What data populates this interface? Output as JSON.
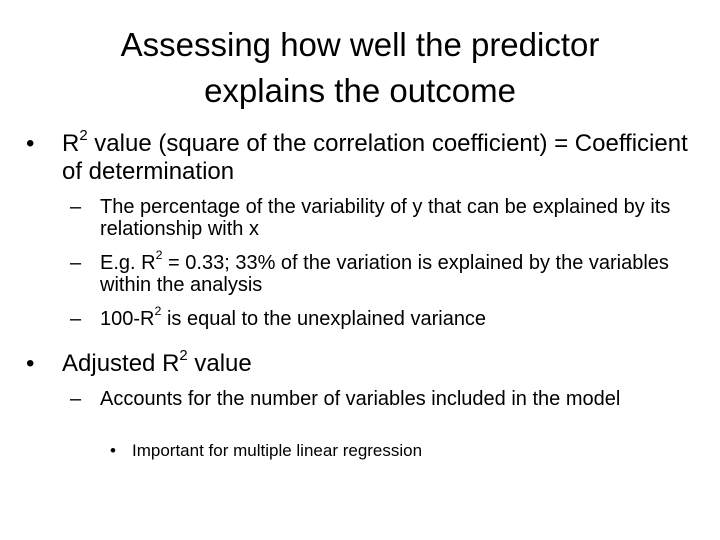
{
  "slide": {
    "title_line1": "Assessing how well the predictor",
    "title_line2": "explains the outcome",
    "markers": {
      "level1": "•",
      "level2": "–",
      "level3": "•"
    },
    "b1": {
      "pre": "R",
      "sup": "2",
      "post": " value (square of the correlation coefficient) = Coefficient of determination"
    },
    "b1_1": {
      "text": "The percentage of the variability of y that can be explained by its relationship with x"
    },
    "b1_2": {
      "pre": "E.g. R",
      "sup": "2",
      "post": " = 0.33; 33% of the variation is explained by the variables within the analysis"
    },
    "b1_3": {
      "pre": "100-R",
      "sup": "2",
      "post": " is equal to the unexplained variance"
    },
    "b2": {
      "pre": "Adjusted R",
      "sup": "2",
      "post": " value"
    },
    "b2_1": {
      "text": "Accounts for the number of variables included in the model"
    },
    "b2_1_1": {
      "text": "Important for multiple linear regression"
    }
  }
}
